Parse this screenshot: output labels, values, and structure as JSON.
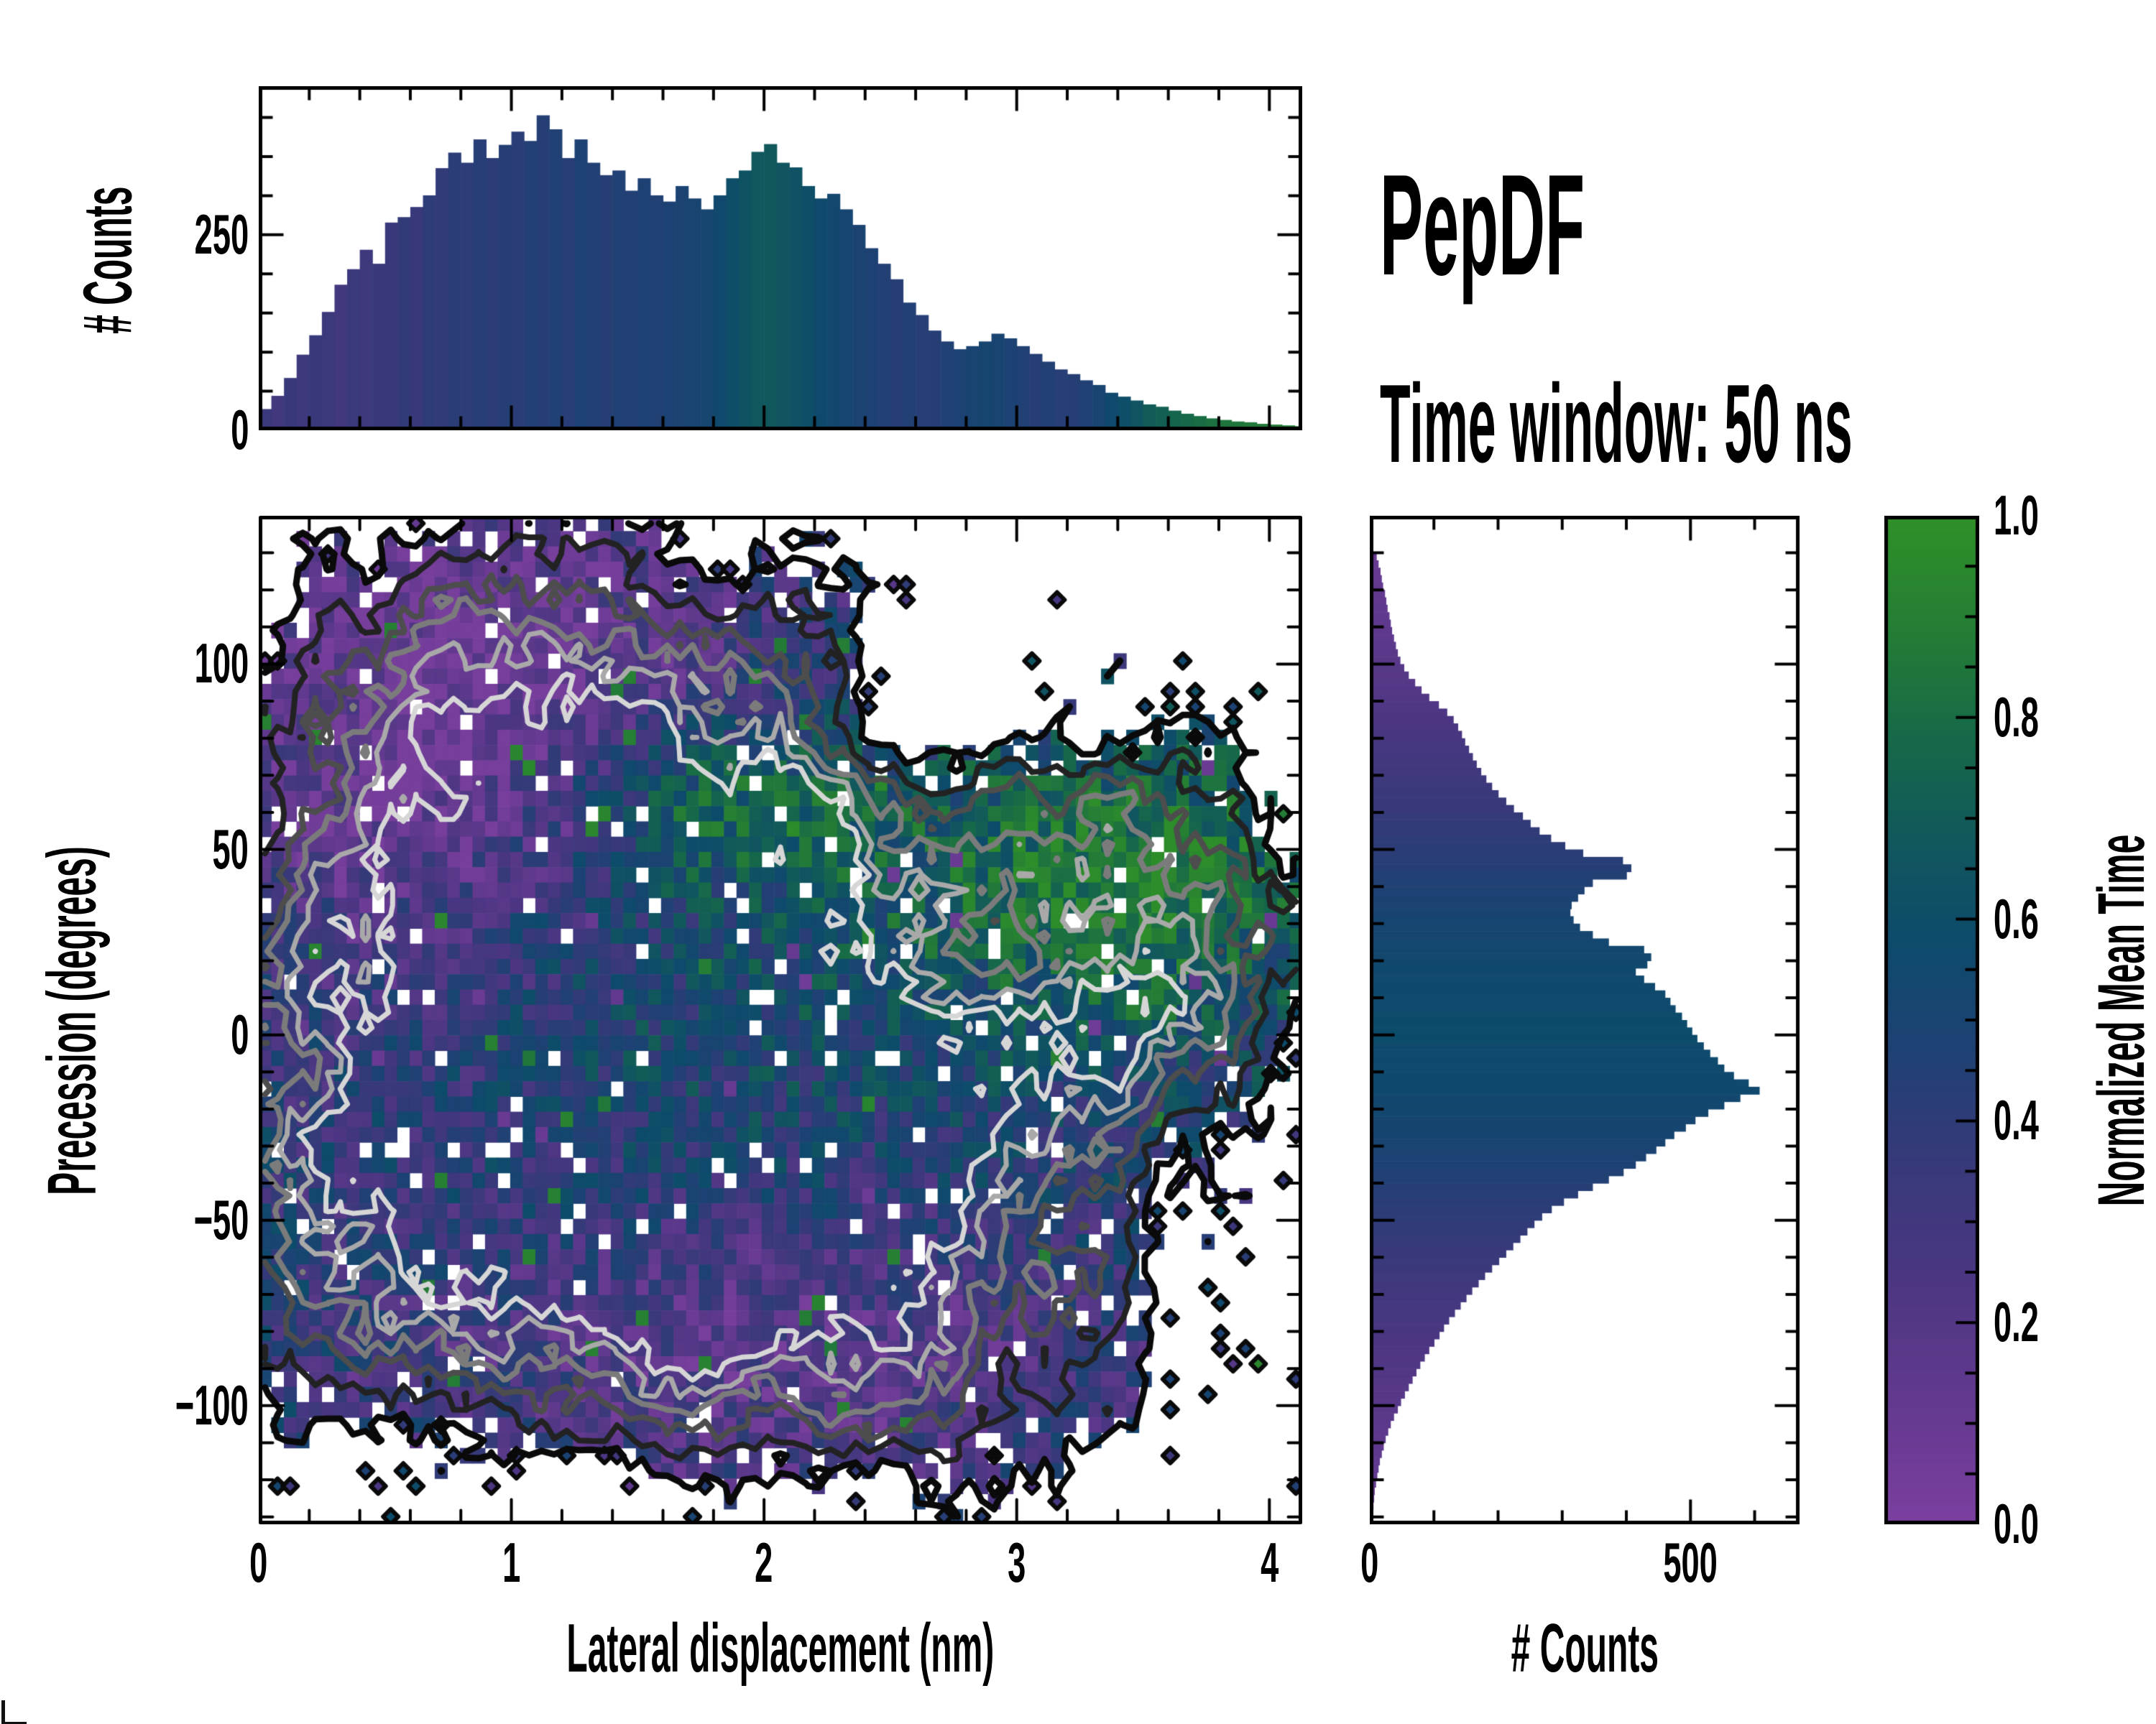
{
  "annotations": {
    "title": "PepDF",
    "subtitle": "Time window: 50 ns"
  },
  "chart_data": {
    "type": "heatmap",
    "description": "Joint 2D histogram of lateral displacement vs precession angle colored by normalized mean time, with density contours and marginal histograms",
    "colormap": {
      "label": "Normalized Mean Time",
      "stops": [
        [
          0.0,
          "#7b3f9f"
        ],
        [
          0.12,
          "#63398f"
        ],
        [
          0.25,
          "#4a3682"
        ],
        [
          0.38,
          "#333a78"
        ],
        [
          0.48,
          "#1c4273"
        ],
        [
          0.58,
          "#0d4b6b"
        ],
        [
          0.68,
          "#11585c"
        ],
        [
          0.78,
          "#166948"
        ],
        [
          0.88,
          "#237c36"
        ],
        [
          1.0,
          "#2f9027"
        ]
      ],
      "ticks": [
        {
          "t": "1.0",
          "v": 1.0
        },
        {
          "t": "0.8",
          "v": 0.8
        },
        {
          "t": "0.6",
          "v": 0.6
        },
        {
          "t": "0.4",
          "v": 0.4
        },
        {
          "t": "0.2",
          "v": 0.2
        },
        {
          "t": "0.0",
          "v": 0.0
        }
      ],
      "major_step": 0.2,
      "minor_step": 0.05,
      "lim": [
        0,
        1
      ]
    },
    "main": {
      "xlabel": "Lateral displacement (nm)",
      "ylabel": "Precession (degrees)",
      "xlim": [
        0,
        4.13
      ],
      "ylim": [
        -132,
        140
      ],
      "xticks": {
        "major": 1,
        "minor": 0.2
      },
      "yticks": {
        "major": 50,
        "minor": 10
      },
      "xticklabels": [
        {
          "t": "0",
          "v": 0
        },
        {
          "t": "1",
          "v": 1
        },
        {
          "t": "2",
          "v": 2
        },
        {
          "t": "3",
          "v": 3
        },
        {
          "t": "4",
          "v": 4
        }
      ],
      "yticklabels": [
        {
          "t": "100",
          "v": 100
        },
        {
          "t": "50",
          "v": 50
        },
        {
          "t": "0",
          "v": 0
        },
        {
          "t": "−50",
          "v": -50
        },
        {
          "t": "−100",
          "v": -100
        }
      ],
      "nx": 83,
      "ny": 66,
      "seed": 20507,
      "density_blobs": [
        [
          1.0,
          1.35,
          -18,
          1.05,
          46
        ],
        [
          0.5,
          1.05,
          42,
          0.8,
          42
        ],
        [
          0.52,
          1.0,
          95,
          0.6,
          36
        ],
        [
          0.45,
          2.1,
          60,
          0.7,
          34
        ],
        [
          0.6,
          3.35,
          40,
          0.55,
          26
        ],
        [
          0.52,
          3.25,
          -2,
          0.6,
          24
        ],
        [
          0.5,
          2.1,
          -80,
          0.9,
          26
        ],
        [
          0.3,
          0.6,
          -55,
          0.65,
          26
        ],
        [
          0.35,
          2.6,
          -42,
          0.55,
          30
        ],
        [
          -0.38,
          2.95,
          22,
          0.33,
          13
        ],
        [
          -0.35,
          2.62,
          78,
          0.24,
          20
        ]
      ],
      "tau": {
        "base": 0.46,
        "blobs": [
          [
            -0.4,
            0.95,
            100,
            1.0,
            45
          ],
          [
            -0.3,
            2.05,
            -88,
            1.1,
            33
          ],
          [
            -0.15,
            0.45,
            30,
            0.5,
            60
          ],
          [
            0.45,
            3.5,
            42,
            0.55,
            26
          ],
          [
            0.22,
            2.1,
            64,
            0.6,
            30
          ],
          [
            0.26,
            1.8,
            62,
            0.4,
            14
          ],
          [
            0.08,
            1.6,
            -5,
            1.2,
            45
          ]
        ],
        "noise": 0.42,
        "spike_green": 0.986,
        "spike_purple": 0.01
      },
      "occupancy": {
        "level": 0.22,
        "smooth_amp": 0.26,
        "cell_amp": 0.17,
        "hole_frac": 0.05,
        "fringe_hole": 0.2
      },
      "contours": {
        "levels": [
          0.22,
          0.36,
          0.5,
          0.62,
          0.74,
          0.86
        ],
        "colors": [
          "#0a0a0a",
          "#222222",
          "#4d4d4d",
          "#7b7b7b",
          "#a9a9a9",
          "#d6d6d6"
        ],
        "widths": [
          9,
          8,
          8,
          8,
          7,
          7
        ]
      },
      "diamonds": {
        "band": 0.12,
        "prob": 0.16,
        "size": 0.6
      }
    },
    "top_hist": {
      "ylabel": "# Counts",
      "bin_start": 0,
      "bin_width": 0.05,
      "ylim": [
        0,
        440
      ],
      "yticks": {
        "major": 250,
        "minor": 50
      },
      "yticklabels": [
        {
          "t": "250",
          "v": 250
        },
        {
          "t": "0",
          "v": 0
        }
      ],
      "values": [
        25,
        42,
        65,
        95,
        120,
        150,
        185,
        205,
        230,
        212,
        265,
        272,
        285,
        300,
        335,
        355,
        342,
        372,
        348,
        365,
        382,
        370,
        403,
        385,
        348,
        372,
        342,
        326,
        332,
        306,
        322,
        300,
        292,
        312,
        296,
        282,
        300,
        322,
        332,
        356,
        366,
        342,
        336,
        312,
        296,
        302,
        282,
        262,
        232,
        212,
        192,
        162,
        146,
        126,
        112,
        102,
        106,
        112,
        122,
        116,
        106,
        96,
        86,
        76,
        70,
        62,
        56,
        46,
        41,
        36,
        31,
        28,
        23,
        19,
        16,
        13,
        11,
        9,
        8,
        6,
        5,
        4,
        3
      ],
      "meantime": [
        0.34,
        0.3,
        0.36,
        0.32,
        0.35,
        0.33,
        0.3,
        0.34,
        0.32,
        0.36,
        0.35,
        0.38,
        0.36,
        0.4,
        0.38,
        0.42,
        0.4,
        0.43,
        0.41,
        0.44,
        0.42,
        0.45,
        0.44,
        0.46,
        0.43,
        0.47,
        0.45,
        0.44,
        0.46,
        0.45,
        0.47,
        0.46,
        0.48,
        0.49,
        0.5,
        0.52,
        0.56,
        0.6,
        0.64,
        0.67,
        0.68,
        0.66,
        0.63,
        0.6,
        0.57,
        0.54,
        0.51,
        0.49,
        0.47,
        0.45,
        0.44,
        0.45,
        0.43,
        0.44,
        0.46,
        0.48,
        0.5,
        0.52,
        0.5,
        0.48,
        0.46,
        0.44,
        0.45,
        0.43,
        0.44,
        0.46,
        0.5,
        0.55,
        0.6,
        0.65,
        0.7,
        0.72,
        0.75,
        0.78,
        0.8,
        0.82,
        0.84,
        0.85,
        0.86,
        0.87,
        0.88,
        0.89,
        0.9
      ]
    },
    "right_hist": {
      "xlabel": "# Counts",
      "bin_start": -130,
      "bin_width": 2,
      "xlim": [
        0,
        670
      ],
      "xticks": {
        "major": 500,
        "minor": 100
      },
      "xticklabels": [
        {
          "t": "0",
          "v": 0
        },
        {
          "t": "500",
          "v": 500
        }
      ],
      "values": [
        2,
        3,
        4,
        5,
        7,
        9,
        11,
        13,
        16,
        19,
        22,
        26,
        30,
        35,
        41,
        46,
        52,
        58,
        64,
        70,
        76,
        83,
        90,
        98,
        106,
        113,
        121,
        130,
        139,
        148,
        157,
        167,
        177,
        188,
        199,
        210,
        221,
        232,
        243,
        254,
        266,
        281,
        300,
        322,
        345,
        370,
        393,
        412,
        428,
        444,
        458,
        472,
        490,
        505,
        525,
        550,
        575,
        605,
        588,
        565,
        550,
        540,
        528,
        518,
        508,
        500,
        492,
        484,
        474,
        466,
        458,
        442,
        425,
        412,
        430,
        436,
        425,
        370,
        345,
        325,
        315,
        310,
        312,
        322,
        332,
        345,
        398,
        405,
        392,
        330,
        302,
        280,
        262,
        248,
        236,
        222,
        210,
        198,
        188,
        179,
        171,
        164,
        158,
        152,
        146,
        141,
        135,
        128,
        118,
        105,
        90,
        78,
        68,
        58,
        51,
        45,
        41,
        38,
        35,
        32,
        30,
        28,
        25,
        23,
        21,
        18,
        16,
        14,
        11,
        8
      ],
      "meantime": [
        0.1,
        0.1,
        0.11,
        0.11,
        0.12,
        0.12,
        0.13,
        0.13,
        0.14,
        0.14,
        0.15,
        0.15,
        0.16,
        0.17,
        0.17,
        0.18,
        0.19,
        0.19,
        0.2,
        0.21,
        0.22,
        0.22,
        0.23,
        0.24,
        0.25,
        0.26,
        0.27,
        0.27,
        0.28,
        0.29,
        0.3,
        0.31,
        0.32,
        0.33,
        0.34,
        0.35,
        0.36,
        0.37,
        0.38,
        0.39,
        0.4,
        0.41,
        0.42,
        0.43,
        0.44,
        0.45,
        0.46,
        0.47,
        0.48,
        0.49,
        0.5,
        0.51,
        0.52,
        0.52,
        0.53,
        0.54,
        0.54,
        0.55,
        0.55,
        0.56,
        0.56,
        0.57,
        0.57,
        0.57,
        0.58,
        0.58,
        0.58,
        0.58,
        0.57,
        0.57,
        0.57,
        0.56,
        0.56,
        0.55,
        0.55,
        0.54,
        0.54,
        0.53,
        0.52,
        0.52,
        0.51,
        0.5,
        0.49,
        0.48,
        0.47,
        0.46,
        0.45,
        0.44,
        0.43,
        0.42,
        0.41,
        0.4,
        0.39,
        0.38,
        0.37,
        0.36,
        0.35,
        0.34,
        0.33,
        0.32,
        0.31,
        0.3,
        0.29,
        0.28,
        0.27,
        0.26,
        0.25,
        0.24,
        0.23,
        0.22,
        0.21,
        0.2,
        0.19,
        0.19,
        0.18,
        0.17,
        0.17,
        0.16,
        0.15,
        0.15,
        0.14,
        0.14,
        0.13,
        0.13,
        0.12,
        0.12,
        0.11,
        0.11,
        0.1,
        0.1
      ]
    }
  }
}
